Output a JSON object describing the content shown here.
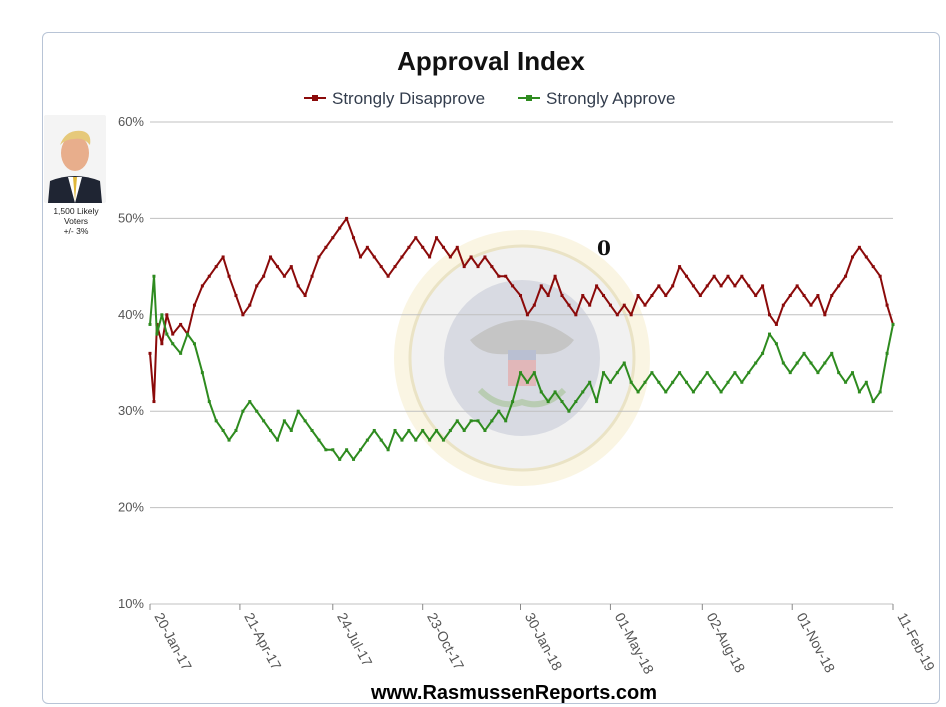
{
  "header": {
    "title": "Approval Index"
  },
  "sidebar": {
    "caption_line1": "1,500 Likely",
    "caption_line2": "Voters",
    "caption_line3": "+/- 3%"
  },
  "annotation": "0",
  "footer": "www.RasmussenReports.com",
  "colors": {
    "disapprove": "#8b0a0a",
    "approve": "#2e8b1f",
    "grid": "#c0c0c0",
    "seal_ring": "#e8dba6"
  },
  "chart_data": {
    "type": "line",
    "title": "Approval Index",
    "xlabel": "",
    "ylabel": "",
    "ylim": [
      10,
      60
    ],
    "yticks": [
      "10%",
      "20%",
      "30%",
      "40%",
      "50%",
      "60%"
    ],
    "ytick_values": [
      10,
      20,
      30,
      40,
      50,
      60
    ],
    "xticks": [
      "20-Jan-17",
      "21-Apr-17",
      "24-Jul-17",
      "23-Oct-17",
      "30-Jan-18",
      "01-May-18",
      "02-Aug-18",
      "01-Nov-18",
      "11-Feb-19"
    ],
    "xtick_dates": [
      "2017-01-20",
      "2017-04-21",
      "2017-07-24",
      "2017-10-23",
      "2018-01-30",
      "2018-05-01",
      "2018-08-02",
      "2018-11-01",
      "2019-02-11"
    ],
    "grid": true,
    "legend_position": "top-center",
    "series": [
      {
        "name": "Strongly Disapprove",
        "color": "#8b0a0a",
        "points": [
          [
            "2017-01-20",
            36
          ],
          [
            "2017-01-24",
            31
          ],
          [
            "2017-01-27",
            39
          ],
          [
            "2017-02-01",
            37
          ],
          [
            "2017-02-06",
            40
          ],
          [
            "2017-02-12",
            38
          ],
          [
            "2017-02-20",
            39
          ],
          [
            "2017-02-27",
            38
          ],
          [
            "2017-03-06",
            41
          ],
          [
            "2017-03-14",
            43
          ],
          [
            "2017-03-21",
            44
          ],
          [
            "2017-03-28",
            45
          ],
          [
            "2017-04-04",
            46
          ],
          [
            "2017-04-10",
            44
          ],
          [
            "2017-04-17",
            42
          ],
          [
            "2017-04-24",
            40
          ],
          [
            "2017-05-01",
            41
          ],
          [
            "2017-05-08",
            43
          ],
          [
            "2017-05-15",
            44
          ],
          [
            "2017-05-22",
            46
          ],
          [
            "2017-05-29",
            45
          ],
          [
            "2017-06-05",
            44
          ],
          [
            "2017-06-12",
            45
          ],
          [
            "2017-06-19",
            43
          ],
          [
            "2017-06-26",
            42
          ],
          [
            "2017-07-03",
            44
          ],
          [
            "2017-07-10",
            46
          ],
          [
            "2017-07-17",
            47
          ],
          [
            "2017-07-24",
            48
          ],
          [
            "2017-07-31",
            49
          ],
          [
            "2017-08-07",
            50
          ],
          [
            "2017-08-14",
            48
          ],
          [
            "2017-08-21",
            46
          ],
          [
            "2017-08-28",
            47
          ],
          [
            "2017-09-04",
            46
          ],
          [
            "2017-09-11",
            45
          ],
          [
            "2017-09-18",
            44
          ],
          [
            "2017-09-25",
            45
          ],
          [
            "2017-10-02",
            46
          ],
          [
            "2017-10-09",
            47
          ],
          [
            "2017-10-16",
            48
          ],
          [
            "2017-10-23",
            47
          ],
          [
            "2017-10-30",
            46
          ],
          [
            "2017-11-06",
            48
          ],
          [
            "2017-11-13",
            47
          ],
          [
            "2017-11-20",
            46
          ],
          [
            "2017-11-27",
            47
          ],
          [
            "2017-12-04",
            45
          ],
          [
            "2017-12-11",
            46
          ],
          [
            "2017-12-18",
            45
          ],
          [
            "2017-12-25",
            46
          ],
          [
            "2018-01-01",
            45
          ],
          [
            "2018-01-08",
            44
          ],
          [
            "2018-01-15",
            44
          ],
          [
            "2018-01-22",
            43
          ],
          [
            "2018-01-30",
            42
          ],
          [
            "2018-02-06",
            40
          ],
          [
            "2018-02-13",
            41
          ],
          [
            "2018-02-20",
            43
          ],
          [
            "2018-02-27",
            42
          ],
          [
            "2018-03-06",
            44
          ],
          [
            "2018-03-13",
            42
          ],
          [
            "2018-03-20",
            41
          ],
          [
            "2018-03-27",
            40
          ],
          [
            "2018-04-03",
            42
          ],
          [
            "2018-04-10",
            41
          ],
          [
            "2018-04-17",
            43
          ],
          [
            "2018-04-24",
            42
          ],
          [
            "2018-05-01",
            41
          ],
          [
            "2018-05-08",
            40
          ],
          [
            "2018-05-15",
            41
          ],
          [
            "2018-05-22",
            40
          ],
          [
            "2018-05-29",
            42
          ],
          [
            "2018-06-05",
            41
          ],
          [
            "2018-06-12",
            42
          ],
          [
            "2018-06-19",
            43
          ],
          [
            "2018-06-26",
            42
          ],
          [
            "2018-07-03",
            43
          ],
          [
            "2018-07-10",
            45
          ],
          [
            "2018-07-17",
            44
          ],
          [
            "2018-07-24",
            43
          ],
          [
            "2018-07-31",
            42
          ],
          [
            "2018-08-07",
            43
          ],
          [
            "2018-08-14",
            44
          ],
          [
            "2018-08-21",
            43
          ],
          [
            "2018-08-28",
            44
          ],
          [
            "2018-09-04",
            43
          ],
          [
            "2018-09-11",
            44
          ],
          [
            "2018-09-18",
            43
          ],
          [
            "2018-09-25",
            42
          ],
          [
            "2018-10-02",
            43
          ],
          [
            "2018-10-09",
            40
          ],
          [
            "2018-10-16",
            39
          ],
          [
            "2018-10-23",
            41
          ],
          [
            "2018-10-30",
            42
          ],
          [
            "2018-11-06",
            43
          ],
          [
            "2018-11-13",
            42
          ],
          [
            "2018-11-20",
            41
          ],
          [
            "2018-11-27",
            42
          ],
          [
            "2018-12-04",
            40
          ],
          [
            "2018-12-11",
            42
          ],
          [
            "2018-12-18",
            43
          ],
          [
            "2018-12-25",
            44
          ],
          [
            "2019-01-01",
            46
          ],
          [
            "2019-01-08",
            47
          ],
          [
            "2019-01-15",
            46
          ],
          [
            "2019-01-22",
            45
          ],
          [
            "2019-01-29",
            44
          ],
          [
            "2019-02-05",
            41
          ],
          [
            "2019-02-11",
            39
          ]
        ]
      },
      {
        "name": "Strongly Approve",
        "color": "#2e8b1f",
        "points": [
          [
            "2017-01-20",
            39
          ],
          [
            "2017-01-24",
            44
          ],
          [
            "2017-01-27",
            38
          ],
          [
            "2017-02-01",
            40
          ],
          [
            "2017-02-06",
            38
          ],
          [
            "2017-02-12",
            37
          ],
          [
            "2017-02-20",
            36
          ],
          [
            "2017-02-27",
            38
          ],
          [
            "2017-03-06",
            37
          ],
          [
            "2017-03-14",
            34
          ],
          [
            "2017-03-21",
            31
          ],
          [
            "2017-03-28",
            29
          ],
          [
            "2017-04-04",
            28
          ],
          [
            "2017-04-10",
            27
          ],
          [
            "2017-04-17",
            28
          ],
          [
            "2017-04-24",
            30
          ],
          [
            "2017-05-01",
            31
          ],
          [
            "2017-05-08",
            30
          ],
          [
            "2017-05-15",
            29
          ],
          [
            "2017-05-22",
            28
          ],
          [
            "2017-05-29",
            27
          ],
          [
            "2017-06-05",
            29
          ],
          [
            "2017-06-12",
            28
          ],
          [
            "2017-06-19",
            30
          ],
          [
            "2017-06-26",
            29
          ],
          [
            "2017-07-03",
            28
          ],
          [
            "2017-07-10",
            27
          ],
          [
            "2017-07-17",
            26
          ],
          [
            "2017-07-24",
            26
          ],
          [
            "2017-07-31",
            25
          ],
          [
            "2017-08-07",
            26
          ],
          [
            "2017-08-14",
            25
          ],
          [
            "2017-08-21",
            26
          ],
          [
            "2017-08-28",
            27
          ],
          [
            "2017-09-04",
            28
          ],
          [
            "2017-09-11",
            27
          ],
          [
            "2017-09-18",
            26
          ],
          [
            "2017-09-25",
            28
          ],
          [
            "2017-10-02",
            27
          ],
          [
            "2017-10-09",
            28
          ],
          [
            "2017-10-16",
            27
          ],
          [
            "2017-10-23",
            28
          ],
          [
            "2017-10-30",
            27
          ],
          [
            "2017-11-06",
            28
          ],
          [
            "2017-11-13",
            27
          ],
          [
            "2017-11-20",
            28
          ],
          [
            "2017-11-27",
            29
          ],
          [
            "2017-12-04",
            28
          ],
          [
            "2017-12-11",
            29
          ],
          [
            "2017-12-18",
            29
          ],
          [
            "2017-12-25",
            28
          ],
          [
            "2018-01-01",
            29
          ],
          [
            "2018-01-08",
            30
          ],
          [
            "2018-01-15",
            29
          ],
          [
            "2018-01-22",
            31
          ],
          [
            "2018-01-30",
            34
          ],
          [
            "2018-02-06",
            33
          ],
          [
            "2018-02-13",
            34
          ],
          [
            "2018-02-20",
            32
          ],
          [
            "2018-02-27",
            31
          ],
          [
            "2018-03-06",
            32
          ],
          [
            "2018-03-13",
            31
          ],
          [
            "2018-03-20",
            30
          ],
          [
            "2018-03-27",
            31
          ],
          [
            "2018-04-03",
            32
          ],
          [
            "2018-04-10",
            33
          ],
          [
            "2018-04-17",
            31
          ],
          [
            "2018-04-24",
            34
          ],
          [
            "2018-05-01",
            33
          ],
          [
            "2018-05-08",
            34
          ],
          [
            "2018-05-15",
            35
          ],
          [
            "2018-05-22",
            33
          ],
          [
            "2018-05-29",
            32
          ],
          [
            "2018-06-05",
            33
          ],
          [
            "2018-06-12",
            34
          ],
          [
            "2018-06-19",
            33
          ],
          [
            "2018-06-26",
            32
          ],
          [
            "2018-07-03",
            33
          ],
          [
            "2018-07-10",
            34
          ],
          [
            "2018-07-17",
            33
          ],
          [
            "2018-07-24",
            32
          ],
          [
            "2018-07-31",
            33
          ],
          [
            "2018-08-07",
            34
          ],
          [
            "2018-08-14",
            33
          ],
          [
            "2018-08-21",
            32
          ],
          [
            "2018-08-28",
            33
          ],
          [
            "2018-09-04",
            34
          ],
          [
            "2018-09-11",
            33
          ],
          [
            "2018-09-18",
            34
          ],
          [
            "2018-09-25",
            35
          ],
          [
            "2018-10-02",
            36
          ],
          [
            "2018-10-09",
            38
          ],
          [
            "2018-10-16",
            37
          ],
          [
            "2018-10-23",
            35
          ],
          [
            "2018-10-30",
            34
          ],
          [
            "2018-11-06",
            35
          ],
          [
            "2018-11-13",
            36
          ],
          [
            "2018-11-20",
            35
          ],
          [
            "2018-11-27",
            34
          ],
          [
            "2018-12-04",
            35
          ],
          [
            "2018-12-11",
            36
          ],
          [
            "2018-12-18",
            34
          ],
          [
            "2018-12-25",
            33
          ],
          [
            "2019-01-01",
            34
          ],
          [
            "2019-01-08",
            32
          ],
          [
            "2019-01-15",
            33
          ],
          [
            "2019-01-22",
            31
          ],
          [
            "2019-01-29",
            32
          ],
          [
            "2019-02-05",
            36
          ],
          [
            "2019-02-11",
            39
          ]
        ]
      }
    ]
  }
}
